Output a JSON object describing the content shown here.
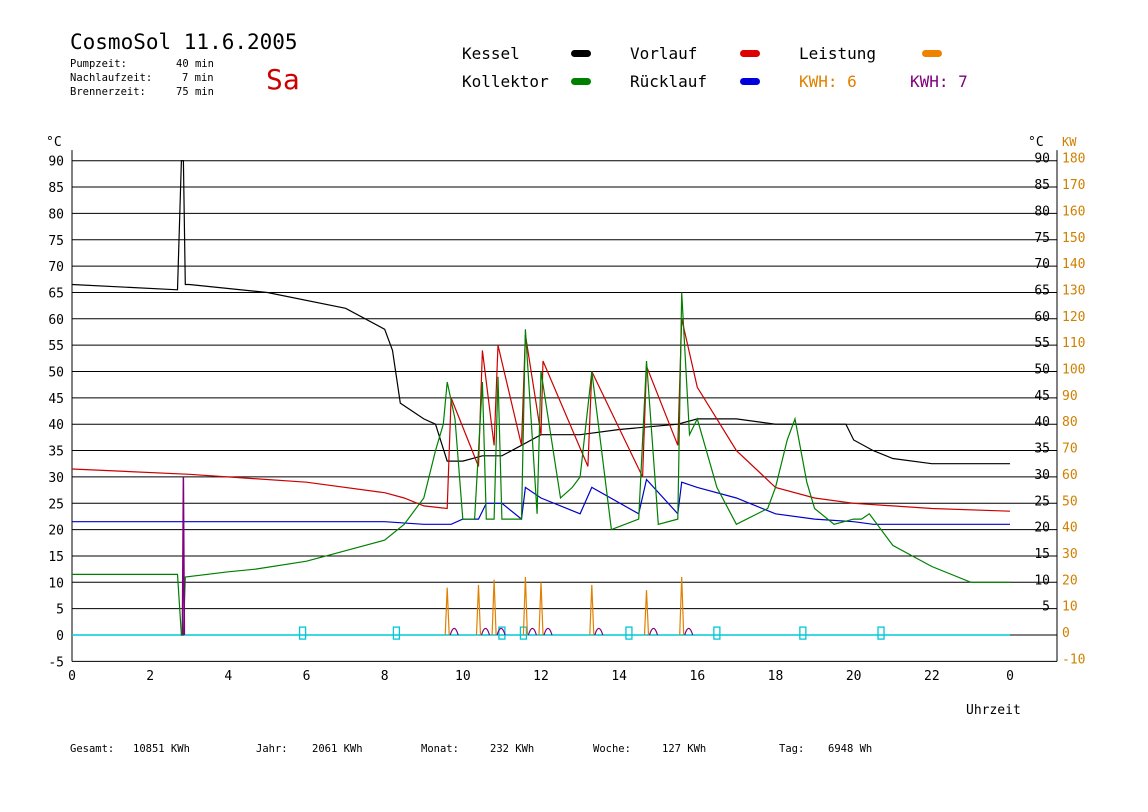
{
  "header": {
    "title": "CosmoSol 11.6.2005",
    "day": "Sa",
    "info": [
      {
        "label": "Pumpzeit:",
        "value": "40 min"
      },
      {
        "label": "Nachlaufzeit:",
        "value": "7 min"
      },
      {
        "label": "Brennerzeit:",
        "value": "75 min"
      }
    ]
  },
  "legend": {
    "kessel": "Kessel",
    "kollektor": "Kollektor",
    "vorlauf": "Vorlauf",
    "ruecklauf": "Rücklauf",
    "leistung": "Leistung",
    "kwh1": "KWH: 6",
    "kwh2": "KWH: 7"
  },
  "colors": {
    "kessel": "#000000",
    "kollektor": "#008000",
    "vorlauf": "#cc0000",
    "ruecklauf": "#0000cc",
    "leistung": "#e08000",
    "purple": "#800080",
    "cyan": "#00c8d8",
    "axis_right_kw": "#d08000"
  },
  "footer": [
    {
      "label": "Gesamt:",
      "value": "10851 KWh"
    },
    {
      "label": "Jahr:",
      "value": "2061 KWh"
    },
    {
      "label": "Monat:",
      "value": "232 KWh"
    },
    {
      "label": "Woche:",
      "value": "127 KWh"
    },
    {
      "label": "Tag:",
      "value": "6948 Wh"
    }
  ],
  "chart_data": {
    "type": "line",
    "xlabel": "Uhrzeit",
    "ylabel_left": "°C",
    "ylabel_right_temp": "°C",
    "ylabel_right_power": "KW",
    "xlim": [
      0,
      24
    ],
    "ylim": [
      -5,
      92
    ],
    "x_ticks": [
      "0",
      "2",
      "4",
      "6",
      "8",
      "10",
      "12",
      "14",
      "16",
      "18",
      "20",
      "22",
      "0"
    ],
    "y_ticks_left": [
      -5,
      0,
      5,
      10,
      15,
      20,
      25,
      30,
      35,
      40,
      45,
      50,
      55,
      60,
      65,
      70,
      75,
      80,
      85,
      90
    ],
    "y_ticks_right_temp": [
      5,
      10,
      15,
      20,
      25,
      30,
      35,
      40,
      45,
      50,
      55,
      60,
      65,
      70,
      75,
      80,
      85,
      90
    ],
    "y_ticks_right_kw": [
      -10,
      0,
      10,
      20,
      30,
      40,
      50,
      60,
      70,
      80,
      90,
      100,
      110,
      120,
      130,
      140,
      150,
      160,
      170,
      180
    ],
    "grid": true,
    "series": [
      {
        "name": "Kessel",
        "x": [
          0,
          2.7,
          2.8,
          2.85,
          2.9,
          3.0,
          5,
          7,
          8.0,
          8.2,
          8.4,
          9.0,
          9.3,
          9.6,
          10.0,
          10.5,
          11.0,
          11.5,
          12.0,
          13.0,
          14.0,
          15.5,
          16.0,
          17.0,
          18.0,
          19.0,
          19.8,
          20.0,
          20.5,
          21.0,
          22.0,
          24.0
        ],
        "y": [
          66.5,
          65.5,
          90,
          90,
          66.5,
          66.5,
          65,
          62,
          58,
          54,
          44,
          41,
          40,
          33,
          33,
          34,
          34,
          36,
          38,
          38,
          39,
          40,
          41,
          41,
          40,
          40,
          40,
          37,
          35,
          33.5,
          32.5,
          32.5
        ]
      },
      {
        "name": "Vorlauf",
        "x": [
          0,
          3,
          6,
          8.0,
          8.5,
          9.0,
          9.6,
          9.7,
          10.4,
          10.5,
          10.8,
          10.9,
          11.5,
          11.6,
          12.0,
          12.05,
          13.2,
          13.3,
          14.6,
          14.7,
          15.5,
          15.6,
          16.0,
          17.0,
          18.0,
          19.0,
          20.0,
          21.0,
          22.0,
          24.0
        ],
        "y": [
          31.5,
          30.5,
          29,
          27,
          26,
          24.5,
          24,
          45,
          32,
          54,
          36,
          55,
          36,
          57,
          38,
          52,
          32,
          50,
          30,
          51,
          36,
          60,
          47,
          35,
          28,
          26,
          25,
          24.5,
          24,
          23.5
        ]
      },
      {
        "name": "Rücklauf",
        "x": [
          0,
          8.0,
          9.0,
          9.5,
          9.7,
          10.0,
          10.4,
          10.6,
          11.0,
          11.5,
          11.6,
          12.0,
          13.0,
          13.3,
          14.5,
          14.7,
          15.5,
          15.6,
          16.0,
          17.0,
          18.0,
          19.0,
          20.0,
          20.5,
          21.0,
          24.0
        ],
        "y": [
          21.5,
          21.5,
          21,
          21,
          21,
          22,
          22,
          25,
          25,
          22,
          28,
          26,
          23,
          28,
          23,
          29.5,
          23,
          29,
          28,
          26,
          23,
          22,
          21.5,
          21,
          21,
          21
        ]
      },
      {
        "name": "Kollektor",
        "x": [
          0,
          2.7,
          2.8,
          2.85,
          2.9,
          4,
          4.7,
          6,
          7,
          8,
          8.5,
          9.0,
          9.3,
          9.5,
          9.6,
          9.8,
          10.0,
          10.3,
          10.5,
          10.6,
          10.8,
          10.9,
          11.0,
          11.2,
          11.5,
          11.6,
          11.9,
          12.0,
          12.5,
          12.8,
          13.0,
          13.3,
          13.8,
          14.5,
          14.7,
          15.0,
          15.5,
          15.6,
          15.8,
          16.0,
          16.5,
          17.0,
          17.8,
          18.0,
          18.3,
          18.5,
          18.8,
          19.0,
          19.5,
          20.0,
          20.2,
          20.4,
          21.0,
          22.0,
          23.0,
          24.0
        ],
        "y": [
          11.5,
          11.5,
          0,
          0,
          11,
          12,
          12.5,
          14,
          16,
          18,
          21,
          26,
          35,
          40,
          48,
          41,
          22,
          22,
          48,
          22,
          22,
          49,
          22,
          22,
          22,
          58,
          23,
          50,
          26,
          28,
          30,
          50,
          20,
          22,
          52,
          21,
          22,
          65,
          38,
          41,
          28,
          21,
          24,
          28,
          37,
          41,
          29,
          24,
          21,
          22,
          22,
          23,
          17,
          13,
          10,
          10
        ]
      }
    ],
    "bars": {
      "name": "Leistung",
      "x": [
        9.6,
        10.4,
        10.8,
        11.6,
        12.0,
        13.3,
        14.7,
        15.6
      ],
      "kw": [
        18,
        19,
        21,
        22,
        20,
        19,
        17,
        22
      ]
    },
    "purple_spike": {
      "x": 2.85,
      "y": 30
    },
    "cyan_markers_x": [
      5.9,
      8.3,
      11.0,
      11.55,
      14.25,
      16.5,
      18.7,
      20.7
    ]
  }
}
